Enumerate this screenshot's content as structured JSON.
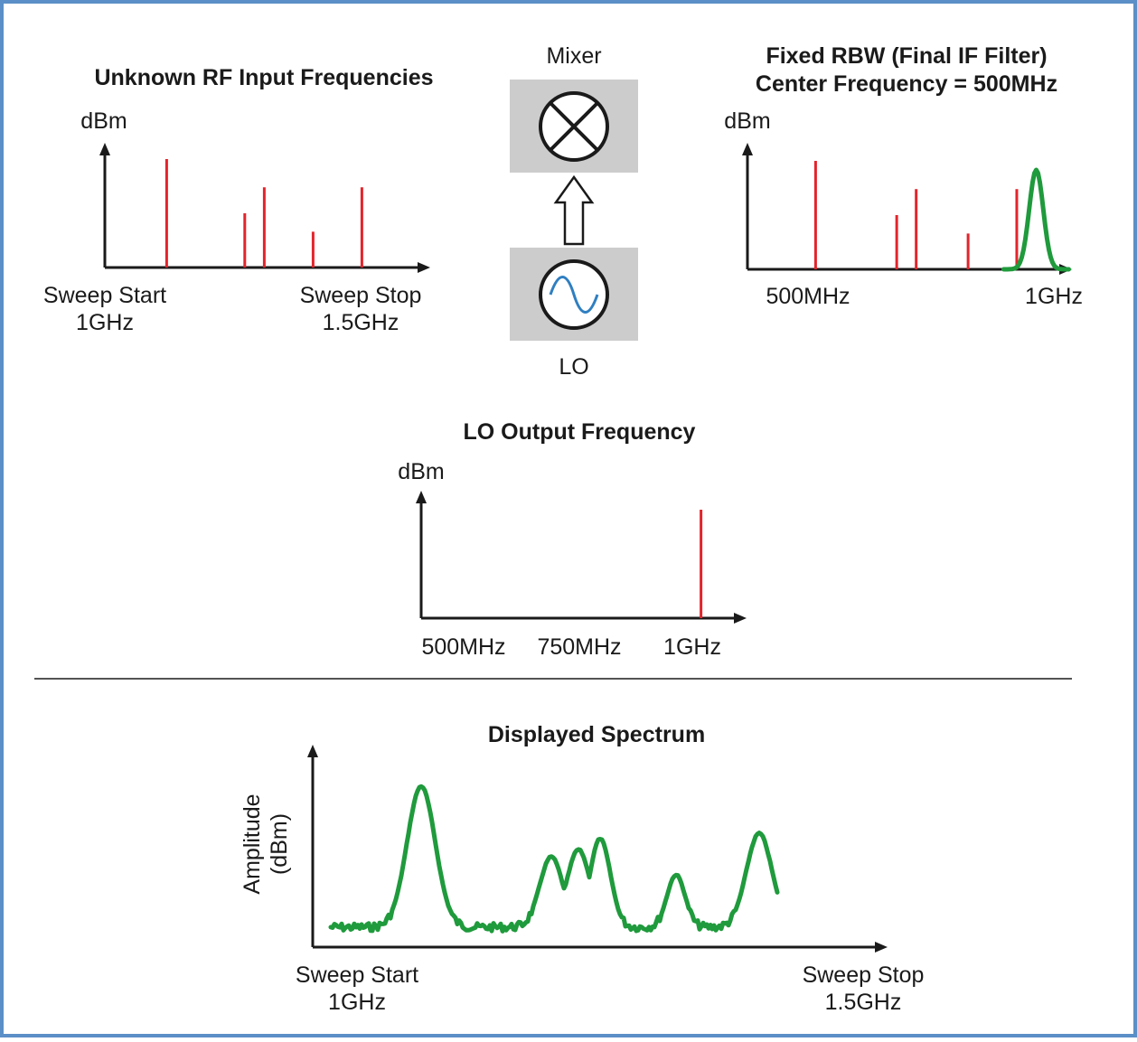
{
  "colors": {
    "frame": "#5b8fc7",
    "signal": "#e3242b",
    "trace": "#1f9a3c",
    "box": "#cccccc"
  },
  "rf_input": {
    "title": "Unknown RF Input Frequencies",
    "ylabel": "dBm",
    "start_label": "Sweep Start",
    "start_value": "1GHz",
    "stop_label": "Sweep Stop",
    "stop_value": "1.5GHz",
    "signals": [
      {
        "x": 0.19,
        "level": 1.0
      },
      {
        "x": 0.43,
        "level": 0.5
      },
      {
        "x": 0.49,
        "level": 0.74
      },
      {
        "x": 0.64,
        "level": 0.33
      },
      {
        "x": 0.79,
        "level": 0.74
      }
    ]
  },
  "mixer": {
    "label": "Mixer",
    "icon": "mixer-x-icon",
    "lo_label": "LO",
    "lo_icon": "sine-wave-icon"
  },
  "rbw": {
    "title_line1": "Fixed RBW (Final IF Filter)",
    "title_line2": "Center Frequency = 500MHz",
    "ylabel": "dBm",
    "x_start": "500MHz",
    "x_end": "1GHz",
    "signals": [
      {
        "x": 0.21,
        "level": 1.0
      },
      {
        "x": 0.46,
        "level": 0.5
      },
      {
        "x": 0.52,
        "level": 0.74
      },
      {
        "x": 0.68,
        "level": 0.33
      },
      {
        "x": 0.83,
        "level": 0.74
      }
    ],
    "filter_center": 0.89
  },
  "lo_output": {
    "title": "LO Output Frequency",
    "ylabel": "dBm",
    "ticks": [
      "500MHz",
      "750MHz",
      "1GHz"
    ],
    "signal": {
      "x": 0.86,
      "level": 1.0
    }
  },
  "display": {
    "title": "Displayed Spectrum",
    "ylabel_line1": "Amplitude",
    "ylabel_line2": "(dBm)",
    "start_label": "Sweep Start",
    "start_value": "1GHz",
    "stop_label": "Sweep Stop",
    "stop_value": "1.5GHz"
  }
}
